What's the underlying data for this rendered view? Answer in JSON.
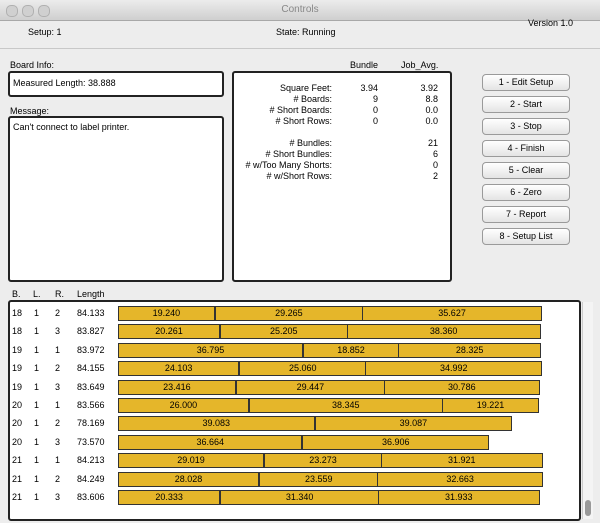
{
  "window": {
    "title": "Controls"
  },
  "header": {
    "setup": "Setup: 1",
    "state": "State: Running",
    "version": "Version 1.0"
  },
  "board_info": {
    "label": "Board Info:",
    "value": "Measured Length: 38.888"
  },
  "message": {
    "label": "Message:",
    "text": "Can't connect to label printer."
  },
  "stats": {
    "columns": [
      "Bundle",
      "Job_Avg."
    ],
    "rows": [
      [
        "Square Feet:",
        "3.94",
        "3.92"
      ],
      [
        "# Boards:",
        "9",
        "8.8"
      ],
      [
        "# Short Boards:",
        "0",
        "0.0"
      ],
      [
        "# Short Rows:",
        "0",
        "0.0"
      ]
    ],
    "totals": [
      [
        "# Bundles:",
        "21"
      ],
      [
        "# Short Bundles:",
        "6"
      ],
      [
        "# w/Too Many Shorts:",
        "0"
      ],
      [
        "# w/Short Rows:",
        "2"
      ]
    ]
  },
  "buttons": [
    "1 - Edit Setup",
    "2 - Start",
    "3 - Stop",
    "4 - Finish",
    "5 - Clear",
    "6 - Zero",
    "7 - Report",
    "8 - Setup List"
  ],
  "table": {
    "columns": [
      "B.",
      "L.",
      "R.",
      "Length"
    ],
    "rows": [
      {
        "b": "18",
        "l": "1",
        "r": "2",
        "length": "84.133",
        "segments": [
          "19.240",
          "29.265",
          "35.627"
        ]
      },
      {
        "b": "18",
        "l": "1",
        "r": "3",
        "length": "83.827",
        "segments": [
          "20.261",
          "25.205",
          "38.360"
        ]
      },
      {
        "b": "19",
        "l": "1",
        "r": "1",
        "length": "83.972",
        "segments": [
          "36.795",
          "18.852",
          "28.325"
        ]
      },
      {
        "b": "19",
        "l": "1",
        "r": "2",
        "length": "84.155",
        "segments": [
          "24.103",
          "25.060",
          "34.992"
        ]
      },
      {
        "b": "19",
        "l": "1",
        "r": "3",
        "length": "83.649",
        "segments": [
          "23.416",
          "29.447",
          "30.786"
        ]
      },
      {
        "b": "20",
        "l": "1",
        "r": "1",
        "length": "83.566",
        "segments": [
          "26.000",
          "38.345",
          "19.221"
        ]
      },
      {
        "b": "20",
        "l": "1",
        "r": "2",
        "length": "78.169",
        "segments": [
          "39.083",
          "39.087"
        ]
      },
      {
        "b": "20",
        "l": "1",
        "r": "3",
        "length": "73.570",
        "segments": [
          "36.664",
          "36.906"
        ]
      },
      {
        "b": "21",
        "l": "1",
        "r": "1",
        "length": "84.213",
        "segments": [
          "29.019",
          "23.273",
          "31.921"
        ]
      },
      {
        "b": "21",
        "l": "1",
        "r": "2",
        "length": "84.249",
        "segments": [
          "28.028",
          "23.559",
          "32.663"
        ]
      },
      {
        "b": "21",
        "l": "1",
        "r": "3",
        "length": "83.606",
        "segments": [
          "20.333",
          "31.340",
          "31.933"
        ]
      }
    ]
  }
}
